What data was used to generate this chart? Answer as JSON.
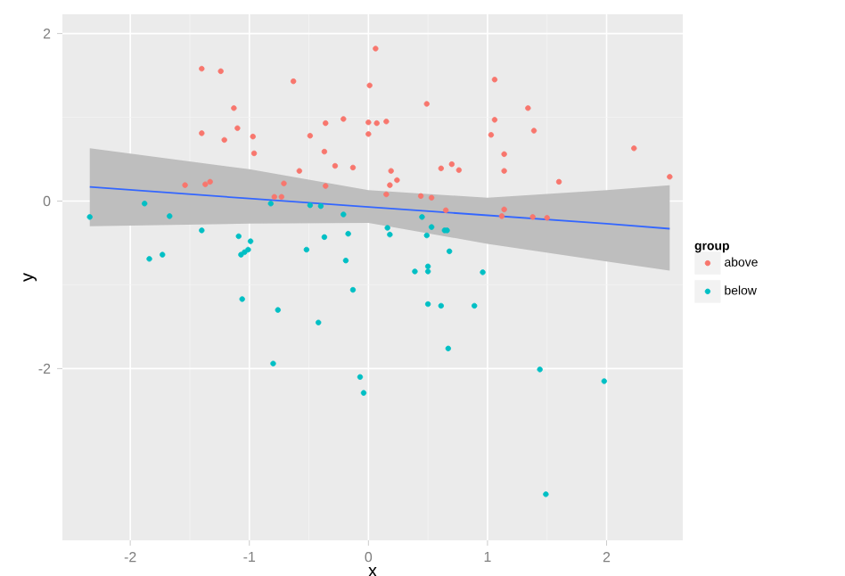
{
  "chart_data": {
    "type": "scatter",
    "xlabel": "x",
    "ylabel": "y",
    "legend_title": "group",
    "xlim": [
      -2.57,
      2.64
    ],
    "ylim": [
      -4.05,
      2.23
    ],
    "xticks": [
      -2,
      -1,
      0,
      1,
      2
    ],
    "yticks": [
      -2,
      0,
      2
    ],
    "grid": true,
    "legend": "right",
    "series": [
      {
        "name": "above",
        "marker": "circle",
        "color": "#f8766d",
        "x": [
          -1.4,
          -1.24,
          -0.63,
          -1.13,
          -1.4,
          -1.21,
          -1.1,
          -0.97,
          -0.96,
          -0.49,
          -0.36,
          -0.21,
          -0.37,
          -0.28,
          -0.13,
          -0.58,
          -1.54,
          -1.37,
          -1.33,
          -0.71,
          -0.36,
          -0.79,
          -0.73,
          0.06,
          0.01,
          0.0,
          0.07,
          0.15,
          0.0,
          0.49,
          1.06,
          1.34,
          1.06,
          1.39,
          1.03,
          1.14,
          1.14,
          0.61,
          0.7,
          0.76,
          0.19,
          0.24,
          0.18,
          0.15,
          0.44,
          0.53,
          0.65,
          1.14,
          1.12,
          1.38,
          1.5,
          1.6,
          2.23,
          2.53
        ],
        "values": [
          1.58,
          1.55,
          1.43,
          1.11,
          0.81,
          0.73,
          0.87,
          0.77,
          0.57,
          0.78,
          0.93,
          0.98,
          0.59,
          0.42,
          0.4,
          0.36,
          0.19,
          0.2,
          0.23,
          0.21,
          0.18,
          0.05,
          0.05,
          1.82,
          1.38,
          0.94,
          0.93,
          0.95,
          0.8,
          1.16,
          1.45,
          1.11,
          0.97,
          0.84,
          0.79,
          0.56,
          0.36,
          0.39,
          0.44,
          0.37,
          0.36,
          0.25,
          0.19,
          0.08,
          0.06,
          0.04,
          -0.11,
          -0.1,
          -0.18,
          -0.19,
          -0.2,
          0.23,
          0.63,
          0.29
        ]
      },
      {
        "name": "below",
        "marker": "circle",
        "color": "#00bfc4",
        "x": [
          -2.34,
          -1.88,
          -1.67,
          -1.4,
          -1.84,
          -1.73,
          -1.09,
          -0.99,
          -1.07,
          -1.04,
          -1.01,
          -0.82,
          -0.49,
          -0.4,
          -0.21,
          -0.52,
          -0.37,
          -0.17,
          -0.19,
          -0.13,
          -1.06,
          -0.76,
          -0.42,
          -0.8,
          -0.07,
          -0.04,
          0.16,
          0.18,
          0.45,
          0.53,
          0.49,
          0.64,
          0.66,
          0.68,
          0.39,
          0.5,
          0.5,
          0.96,
          0.5,
          0.61,
          0.89,
          0.67,
          1.44,
          1.98,
          1.49
        ],
        "values": [
          -0.19,
          -0.03,
          -0.18,
          -0.35,
          -0.69,
          -0.64,
          -0.42,
          -0.48,
          -0.64,
          -0.61,
          -0.58,
          -0.03,
          -0.05,
          -0.06,
          -0.16,
          -0.58,
          -0.43,
          -0.39,
          -0.71,
          -1.06,
          -1.17,
          -1.3,
          -1.45,
          -1.94,
          -2.1,
          -2.29,
          -0.32,
          -0.4,
          -0.19,
          -0.31,
          -0.41,
          -0.35,
          -0.35,
          -0.6,
          -0.84,
          -0.78,
          -0.84,
          -0.85,
          -1.23,
          -1.25,
          -1.25,
          -1.76,
          -2.01,
          -2.15,
          -3.5
        ]
      },
      {
        "type": "line",
        "marker": "none",
        "color": "#3366ff",
        "x": [
          -2.34,
          -1,
          0,
          1,
          2,
          2.53
        ],
        "values": [
          0.17,
          0.03,
          -0.07,
          -0.17,
          -0.27,
          -0.33
        ],
        "lower": [
          -0.3,
          -0.27,
          -0.26,
          -0.51,
          -0.72,
          -0.83
        ],
        "upper": [
          0.63,
          0.38,
          0.13,
          0.04,
          0.13,
          0.19
        ]
      }
    ]
  }
}
